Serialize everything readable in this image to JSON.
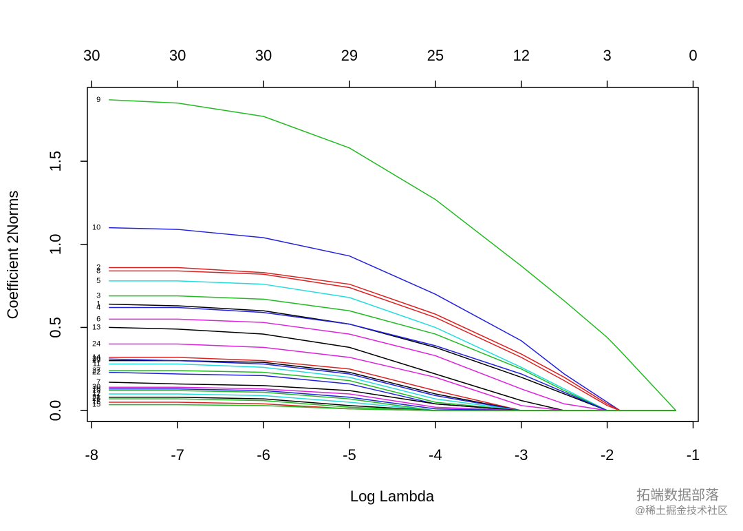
{
  "chart_data": {
    "type": "line",
    "xlabel": "Log Lambda",
    "ylabel": "Coefficient 2Norms",
    "x": [
      -7.8,
      -7,
      -6,
      -5,
      -4,
      -3,
      -2.5,
      -2,
      -1.85,
      -1.2
    ],
    "xlim": [
      -8.05,
      -0.94
    ],
    "ylim": [
      -0.066,
      1.944
    ],
    "xticks": [
      -8,
      -7,
      -6,
      -5,
      -4,
      -3,
      -2,
      -1
    ],
    "x2ticks": [
      {
        "value": -8,
        "label": "30"
      },
      {
        "value": -7,
        "label": "30"
      },
      {
        "value": -6,
        "label": "30"
      },
      {
        "value": -5,
        "label": "29"
      },
      {
        "value": -4,
        "label": "25"
      },
      {
        "value": -3,
        "label": "12"
      },
      {
        "value": -2,
        "label": "3"
      },
      {
        "value": -1,
        "label": "0"
      }
    ],
    "yticks": [
      {
        "value": 0,
        "label": "0.0"
      },
      {
        "value": 0.5,
        "label": "0.5"
      },
      {
        "value": 1,
        "label": "1.0"
      },
      {
        "value": 1.5,
        "label": "1.5"
      }
    ],
    "series": [
      {
        "name": "9",
        "color": "#22bb22",
        "values": [
          1.87,
          1.85,
          1.77,
          1.58,
          1.27,
          0.87,
          0.66,
          0.44,
          0.36,
          0
        ]
      },
      {
        "name": "10",
        "color": "#2222dd",
        "values": [
          1.1,
          1.09,
          1.04,
          0.93,
          0.7,
          0.42,
          0.22,
          0.05,
          0,
          0
        ]
      },
      {
        "name": "2",
        "color": "#dd2222",
        "values": [
          0.86,
          0.86,
          0.83,
          0.76,
          0.58,
          0.34,
          0.2,
          0.04,
          0,
          0
        ]
      },
      {
        "name": "8",
        "color": "#dd2222",
        "values": [
          0.84,
          0.84,
          0.82,
          0.74,
          0.56,
          0.32,
          0.18,
          0.03,
          0,
          0
        ]
      },
      {
        "name": "5",
        "color": "#22dddd",
        "values": [
          0.78,
          0.78,
          0.76,
          0.68,
          0.5,
          0.26,
          0.13,
          0,
          0,
          0
        ]
      },
      {
        "name": "3",
        "color": "#22bb22",
        "values": [
          0.69,
          0.69,
          0.67,
          0.6,
          0.46,
          0.25,
          0.12,
          0,
          0,
          0
        ]
      },
      {
        "name": "1",
        "color": "#000000",
        "values": [
          0.64,
          0.63,
          0.6,
          0.52,
          0.38,
          0.2,
          0.1,
          0,
          0,
          0
        ]
      },
      {
        "name": "4",
        "color": "#2222dd",
        "values": [
          0.62,
          0.62,
          0.59,
          0.52,
          0.39,
          0.22,
          0.11,
          0,
          0,
          0
        ]
      },
      {
        "name": "6",
        "color": "#dd22dd",
        "values": [
          0.55,
          0.55,
          0.53,
          0.46,
          0.33,
          0.13,
          0.04,
          0,
          0,
          0
        ]
      },
      {
        "name": "13",
        "color": "#000000",
        "values": [
          0.5,
          0.49,
          0.46,
          0.38,
          0.22,
          0.06,
          0,
          0,
          0,
          0
        ]
      },
      {
        "name": "24",
        "color": "#dd22dd",
        "values": [
          0.4,
          0.4,
          0.38,
          0.32,
          0.2,
          0.03,
          0,
          0,
          0,
          0
        ]
      },
      {
        "name": "14",
        "color": "#dd2222",
        "values": [
          0.32,
          0.32,
          0.3,
          0.25,
          0.12,
          0,
          0,
          0,
          0,
          0
        ]
      },
      {
        "name": "29",
        "color": "#000000",
        "values": [
          0.3,
          0.3,
          0.29,
          0.23,
          0.1,
          0,
          0,
          0,
          0,
          0
        ]
      },
      {
        "name": "20",
        "color": "#2222dd",
        "values": [
          0.31,
          0.3,
          0.28,
          0.22,
          0.09,
          0,
          0,
          0,
          0,
          0
        ]
      },
      {
        "name": "11",
        "color": "#22dddd",
        "values": [
          0.28,
          0.28,
          0.26,
          0.2,
          0.07,
          0,
          0,
          0,
          0,
          0
        ]
      },
      {
        "name": "27",
        "color": "#22bb22",
        "values": [
          0.24,
          0.24,
          0.23,
          0.18,
          0.05,
          0,
          0,
          0,
          0,
          0
        ]
      },
      {
        "name": "22",
        "color": "#2222dd",
        "values": [
          0.23,
          0.22,
          0.21,
          0.16,
          0.04,
          0,
          0,
          0,
          0,
          0
        ]
      },
      {
        "name": "7",
        "color": "#000000",
        "values": [
          0.17,
          0.16,
          0.15,
          0.12,
          0.04,
          0,
          0,
          0,
          0,
          0
        ]
      },
      {
        "name": "30",
        "color": "#dd22dd",
        "values": [
          0.14,
          0.14,
          0.13,
          0.1,
          0.02,
          0,
          0,
          0,
          0,
          0
        ]
      },
      {
        "name": "18",
        "color": "#2222dd",
        "values": [
          0.13,
          0.13,
          0.12,
          0.08,
          0.01,
          0,
          0,
          0,
          0,
          0
        ]
      },
      {
        "name": "19",
        "color": "#22bb22",
        "values": [
          0.12,
          0.12,
          0.11,
          0.07,
          0,
          0,
          0,
          0,
          0,
          0
        ]
      },
      {
        "name": "12",
        "color": "#22dddd",
        "values": [
          0.1,
          0.1,
          0.09,
          0.05,
          0,
          0,
          0,
          0,
          0,
          0
        ]
      },
      {
        "name": "21",
        "color": "#000000",
        "values": [
          0.08,
          0.08,
          0.07,
          0.03,
          0,
          0,
          0,
          0,
          0,
          0
        ]
      },
      {
        "name": "26",
        "color": "#22bb22",
        "values": [
          0.07,
          0.07,
          0.06,
          0.02,
          0,
          0,
          0,
          0,
          0,
          0
        ]
      },
      {
        "name": "16",
        "color": "#dd2222",
        "values": [
          0.05,
          0.05,
          0.04,
          0.01,
          0,
          0,
          0,
          0,
          0,
          0
        ]
      },
      {
        "name": "15",
        "color": "#22bb22",
        "values": [
          0.035,
          0.035,
          0.03,
          0.01,
          0,
          0,
          0,
          0,
          0,
          0
        ]
      }
    ]
  },
  "watermark": {
    "brand": "拓端数据部落",
    "source": "@稀土掘金技术社区"
  }
}
